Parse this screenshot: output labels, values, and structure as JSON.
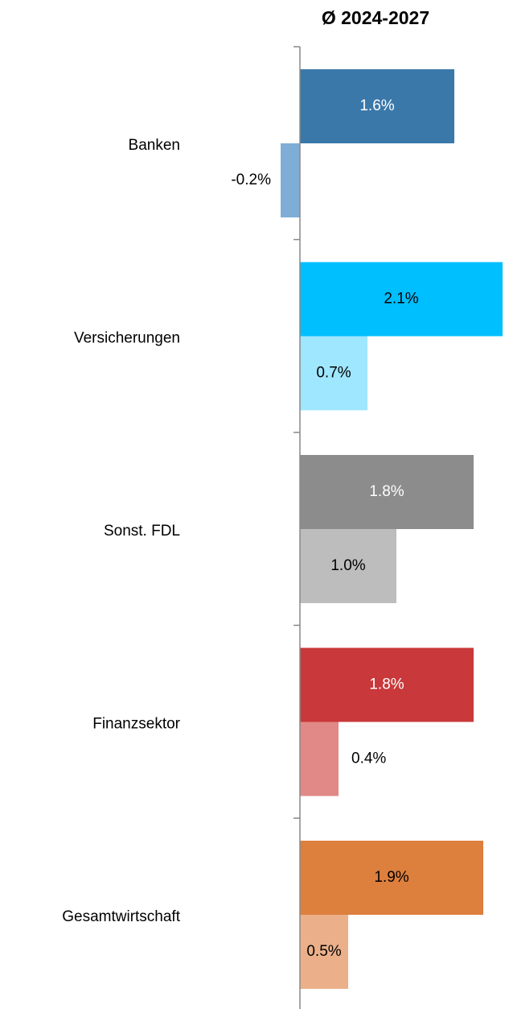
{
  "chart_data": {
    "type": "hbar",
    "title": "Ø 2024-2027",
    "categories": [
      "Banken",
      "Versicherungen",
      "Sonst. FDL",
      "Finanzsektor",
      "Gesamtwirtschaft"
    ],
    "series": [
      {
        "values": [
          1.6,
          2.1,
          1.8,
          1.8,
          1.9
        ],
        "value_labels": [
          "1.6%",
          "2.1%",
          "1.8%",
          "1.8%",
          "1.9%"
        ],
        "colors": [
          "#3a78aa",
          "#00bfff",
          "#8c8c8c",
          "#c9383a",
          "#dd7f3d"
        ],
        "label_colors": [
          "#ffffff",
          "#000000",
          "#ffffff",
          "#ffffff",
          "#000000"
        ]
      },
      {
        "values": [
          -0.2,
          0.7,
          1.0,
          0.4,
          0.5
        ],
        "value_labels": [
          "-0.2%",
          "0.7%",
          "1.0%",
          "0.4%",
          "0.5%"
        ],
        "colors": [
          "#7eaed6",
          "#9fe6ff",
          "#bdbdbd",
          "#e08986",
          "#ebb08a"
        ],
        "label_colors": [
          "#000000",
          "#000000",
          "#000000",
          "#000000",
          "#000000"
        ]
      }
    ],
    "xlim": [
      -3.1,
      2.15
    ]
  }
}
